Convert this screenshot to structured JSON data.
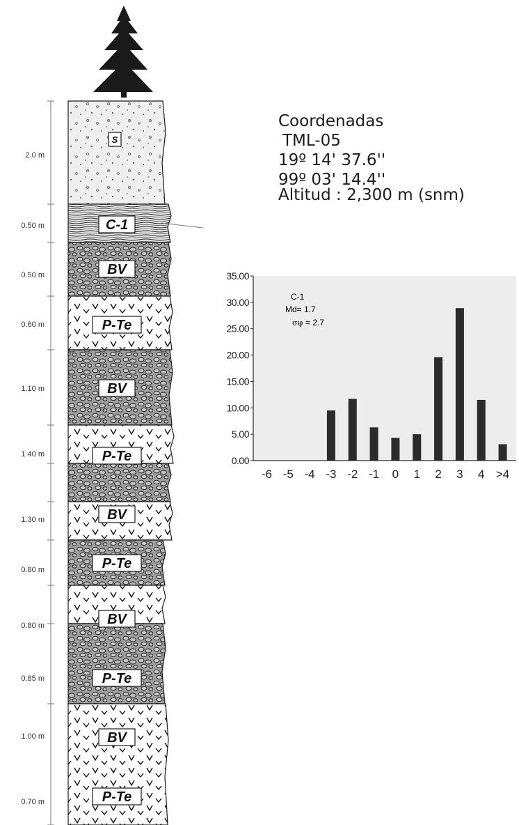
{
  "column": {
    "layers": [
      {
        "thickness": "2.0 m",
        "code": "S",
        "pattern": "soil"
      },
      {
        "thickness": "0.50 m",
        "code": "C-1",
        "pattern": "laminated"
      },
      {
        "thickness": "0.50 m",
        "code": "BV",
        "pattern": "breccia"
      },
      {
        "thickness": "0.60 m",
        "code": "P-Te",
        "pattern": "tuff"
      },
      {
        "thickness": "1.10 m",
        "code": "BV",
        "pattern": "breccia"
      },
      {
        "thickness": "1.40 m",
        "code": "P-Te",
        "pattern": "tuff"
      },
      {
        "thickness": "1.30 m",
        "code": "BV",
        "pattern": "breccia"
      },
      {
        "thickness": "0.80 m",
        "code": "P-Te",
        "pattern": "tuff"
      },
      {
        "thickness": "0.80 m",
        "code": "BV",
        "pattern": "breccia"
      },
      {
        "thickness": "0.85 m",
        "code": "P-Te",
        "pattern": "tuff"
      },
      {
        "thickness": "1.00 m",
        "code": "BV",
        "pattern": "breccia"
      },
      {
        "thickness": "0.70 m",
        "code": "P-Te",
        "pattern": "tuff"
      }
    ],
    "colors": {
      "breccia_fill": "#9e9e9e",
      "soil_fill": "#efefef",
      "line": "#1a1a1a"
    }
  },
  "coordinates": {
    "title": "Coordenadas",
    "site": "TML-05",
    "latitude": "19º  14'  37.6''",
    "longitude": "99º  03'  14.4''",
    "altitude": "Altitud : 2,300 m (snm)"
  },
  "chart_data": {
    "type": "bar",
    "sample": "C-1",
    "annotation_md": "Md= 1.7",
    "annotation_sigma": "= 2.7",
    "categories": [
      "-6",
      "-5",
      "-4",
      "-3",
      "-2",
      "-1",
      "0",
      "1",
      "2",
      "3",
      "4",
      ">4"
    ],
    "values": [
      0,
      0,
      0,
      9.5,
      11.7,
      6.3,
      4.3,
      5.0,
      19.6,
      28.9,
      11.5,
      3.1
    ],
    "yticks": [
      "35.00",
      "30.00",
      "25.00",
      "20.00",
      "15.00",
      "10.00",
      "5.00",
      "0.00"
    ],
    "ylim": [
      0,
      35
    ],
    "grid": false,
    "bar_color": "#2b2b2b",
    "plot_bg": "#ededed"
  }
}
